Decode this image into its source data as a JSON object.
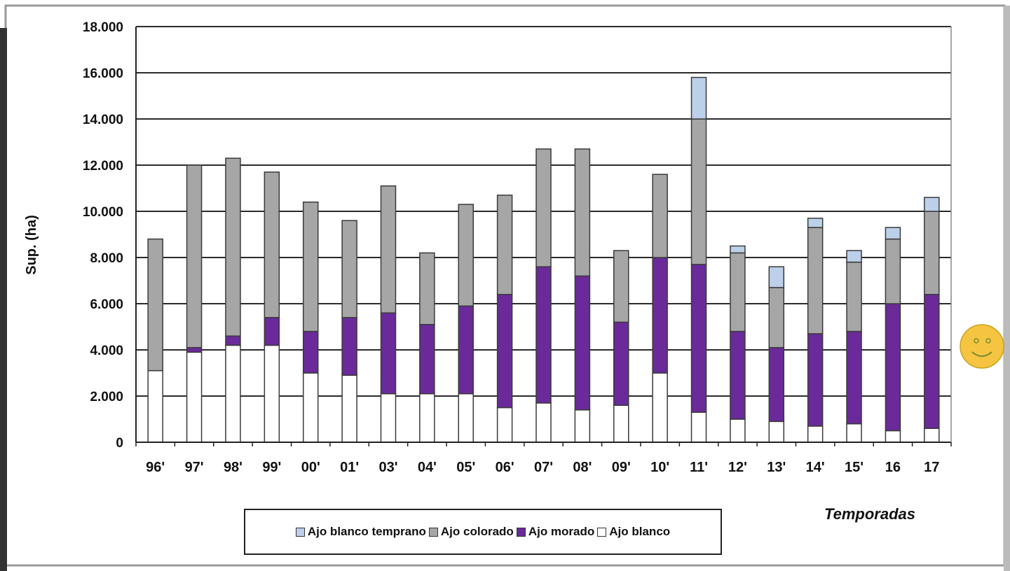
{
  "chart_data": {
    "type": "bar",
    "stacked": true,
    "title": "",
    "xlabel": "Temporadas",
    "ylabel": "Sup. (ha)",
    "ylim": [
      0,
      18000
    ],
    "yticks": [
      "0",
      "2.000",
      "4.000",
      "6.000",
      "8.000",
      "10.000",
      "12.000",
      "14.000",
      "16.000",
      "18.000"
    ],
    "grid": true,
    "legend_position": "bottom",
    "categories": [
      "96'",
      "97'",
      "98'",
      "99'",
      "00'",
      "01'",
      "03'",
      "04'",
      "05'",
      "06'",
      "07'",
      "08'",
      "09'",
      "10'",
      "11'",
      "12'",
      "13'",
      "14'",
      "15'",
      "16",
      "17"
    ],
    "series": [
      {
        "name": "Ajo blanco",
        "color": "#ffffff",
        "values": [
          3100,
          3900,
          4200,
          4200,
          3000,
          2900,
          2100,
          2100,
          2100,
          1500,
          1700,
          1400,
          1600,
          3000,
          1300,
          1000,
          900,
          700,
          800,
          500,
          600
        ]
      },
      {
        "name": "Ajo morado",
        "color": "#6a2a9a",
        "values": [
          0,
          200,
          400,
          1200,
          1800,
          2500,
          3500,
          3000,
          3800,
          4900,
          5900,
          5800,
          3600,
          5000,
          6400,
          3800,
          3200,
          4000,
          4000,
          5500,
          5800
        ]
      },
      {
        "name": "Ajo colorado",
        "color": "#a6a6a6",
        "values": [
          5700,
          7900,
          7700,
          6300,
          5600,
          4200,
          5500,
          3100,
          4400,
          4300,
          5100,
          5500,
          3100,
          3600,
          6300,
          3400,
          2600,
          4600,
          3000,
          2800,
          3600
        ]
      },
      {
        "name": "Ajo blanco temprano",
        "color": "#bcd0ea",
        "values": [
          0,
          0,
          0,
          0,
          0,
          0,
          0,
          0,
          0,
          0,
          0,
          0,
          0,
          0,
          1800,
          300,
          900,
          400,
          500,
          500,
          600
        ]
      }
    ]
  },
  "legend": {
    "items": [
      {
        "label": "Ajo blanco temprano",
        "color": "#bcd0ea"
      },
      {
        "label": "Ajo colorado",
        "color": "#a6a6a6"
      },
      {
        "label": "Ajo morado",
        "color": "#6a2a9a"
      },
      {
        "label": "Ajo blanco",
        "color": "#ffffff"
      }
    ]
  },
  "decoration": {
    "icon": "smiley-face-icon",
    "color": "#f5c542"
  }
}
